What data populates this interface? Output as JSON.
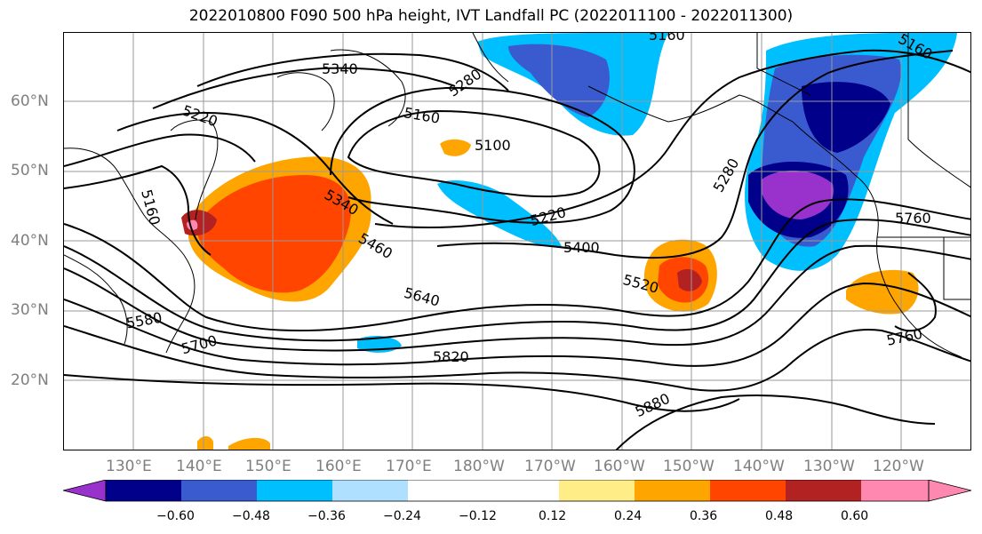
{
  "title": "2022010800 F090 500 hPa height, IVT Landfall PC (2022011100 - 2022011300)",
  "lat_labels": [
    "60°N",
    "50°N",
    "40°N",
    "30°N",
    "20°N"
  ],
  "lon_labels": [
    "130°E",
    "140°E",
    "150°E",
    "160°E",
    "170°E",
    "180°W",
    "170°W",
    "160°W",
    "150°W",
    "140°W",
    "130°W",
    "120°W"
  ],
  "contour_labels": [
    "5160",
    "5340",
    "5280",
    "5220",
    "5160",
    "5100",
    "5160",
    "5340",
    "5460",
    "5220",
    "5400",
    "5280",
    "5520",
    "5640",
    "5580",
    "5700",
    "5820",
    "5880",
    "5760",
    "5760",
    "5160"
  ],
  "colorbar": {
    "colors": [
      "#9932cc",
      "#00008b",
      "#3a5bd0",
      "#00bfff",
      "#b0e0ff",
      "#ffffff",
      "#ffee88",
      "#ffa500",
      "#ff4500",
      "#b22222",
      "#ff88b0"
    ],
    "tick_labels": [
      "−0.60",
      "−0.48",
      "−0.36",
      "−0.24",
      "−0.12",
      "0.12",
      "0.24",
      "0.36",
      "0.48",
      "0.60"
    ]
  }
}
